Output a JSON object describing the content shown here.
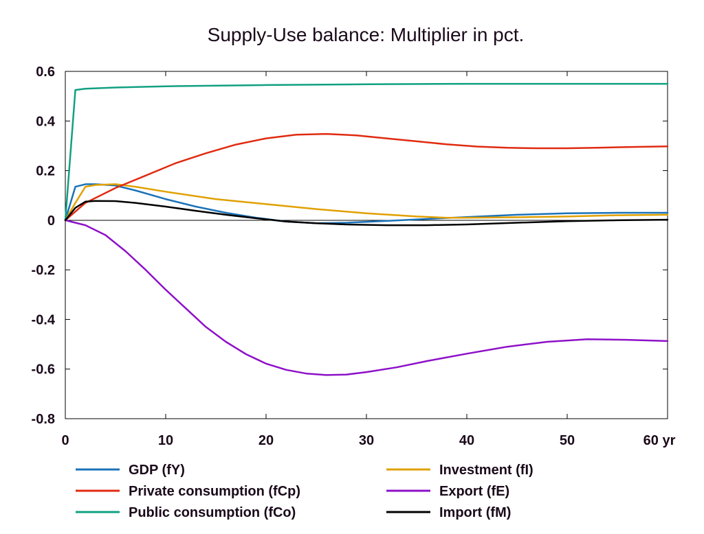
{
  "chart_data": {
    "type": "line",
    "title": "Supply-Use balance: Multiplier in pct.",
    "xlabel": "",
    "ylabel": "",
    "xlim": [
      0,
      60
    ],
    "ylim": [
      -0.8,
      0.6
    ],
    "x_ticks": [
      0,
      10,
      20,
      30,
      40,
      50,
      60
    ],
    "x_tick_labels": [
      "0",
      "10",
      "20",
      "30",
      "40",
      "50",
      "60 yr"
    ],
    "y_ticks": [
      0.6,
      0.4,
      0.2,
      0,
      -0.2,
      -0.4,
      -0.6,
      -0.8
    ],
    "y_tick_labels": [
      "0.6",
      "0.4",
      "0.2",
      "0",
      "-0.2",
      "-0.4",
      "-0.6",
      "-0.8"
    ],
    "grid": false,
    "zero_line": true,
    "legend_position": "bottom",
    "series": [
      {
        "name": "GDP (fY)",
        "color": "#1a72b8",
        "x": [
          0,
          1,
          2,
          3,
          5,
          7,
          10,
          13,
          16,
          19,
          22,
          25,
          28,
          32,
          36,
          40,
          45,
          50,
          55,
          60
        ],
        "y": [
          0,
          0.135,
          0.145,
          0.145,
          0.14,
          0.12,
          0.085,
          0.055,
          0.03,
          0.01,
          -0.005,
          -0.012,
          -0.01,
          -0.003,
          0.005,
          0.013,
          0.022,
          0.028,
          0.03,
          0.03
        ]
      },
      {
        "name": "Investment (fI)",
        "color": "#e0a000",
        "x": [
          0,
          1,
          2,
          3,
          5,
          7,
          10,
          15,
          20,
          25,
          30,
          35,
          38,
          40,
          45,
          50,
          55,
          60
        ],
        "y": [
          0,
          0.07,
          0.135,
          0.142,
          0.145,
          0.135,
          0.115,
          0.085,
          0.065,
          0.045,
          0.028,
          0.015,
          0.01,
          0.01,
          0.012,
          0.015,
          0.02,
          0.022
        ]
      },
      {
        "name": "Private consumption (fCp)",
        "color": "#e02a10",
        "x": [
          0,
          2,
          5,
          8,
          11,
          14,
          17,
          20,
          23,
          26,
          29,
          32,
          35,
          38,
          41,
          44,
          47,
          50,
          53,
          56,
          60
        ],
        "y": [
          0,
          0.07,
          0.13,
          0.18,
          0.23,
          0.27,
          0.305,
          0.33,
          0.345,
          0.348,
          0.342,
          0.33,
          0.318,
          0.306,
          0.297,
          0.292,
          0.29,
          0.29,
          0.292,
          0.295,
          0.298
        ]
      },
      {
        "name": "Export (fE)",
        "color": "#8e10c8",
        "x": [
          0,
          2,
          4,
          6,
          8,
          10,
          12,
          14,
          16,
          18,
          20,
          22,
          24,
          26,
          28,
          30,
          33,
          36,
          40,
          44,
          48,
          52,
          56,
          60
        ],
        "y": [
          0,
          -0.02,
          -0.06,
          -0.125,
          -0.2,
          -0.28,
          -0.355,
          -0.43,
          -0.49,
          -0.54,
          -0.578,
          -0.603,
          -0.618,
          -0.624,
          -0.622,
          -0.612,
          -0.593,
          -0.568,
          -0.538,
          -0.51,
          -0.49,
          -0.48,
          -0.482,
          -0.487
        ]
      },
      {
        "name": "Public consumption (fCo)",
        "color": "#10a080",
        "x": [
          0,
          1,
          2,
          5,
          10,
          20,
          30,
          40,
          50,
          60
        ],
        "y": [
          0,
          0.525,
          0.53,
          0.535,
          0.54,
          0.545,
          0.548,
          0.55,
          0.55,
          0.55
        ]
      },
      {
        "name": "Import (fM)",
        "color": "#000000",
        "x": [
          0,
          1,
          2,
          3,
          5,
          7,
          10,
          13,
          16,
          19,
          22,
          25,
          28,
          32,
          36,
          40,
          45,
          50,
          55,
          60
        ],
        "y": [
          0,
          0.05,
          0.075,
          0.078,
          0.077,
          0.07,
          0.055,
          0.038,
          0.022,
          0.008,
          -0.005,
          -0.012,
          -0.017,
          -0.02,
          -0.02,
          -0.017,
          -0.01,
          -0.004,
          0.0,
          0.002
        ]
      }
    ]
  }
}
